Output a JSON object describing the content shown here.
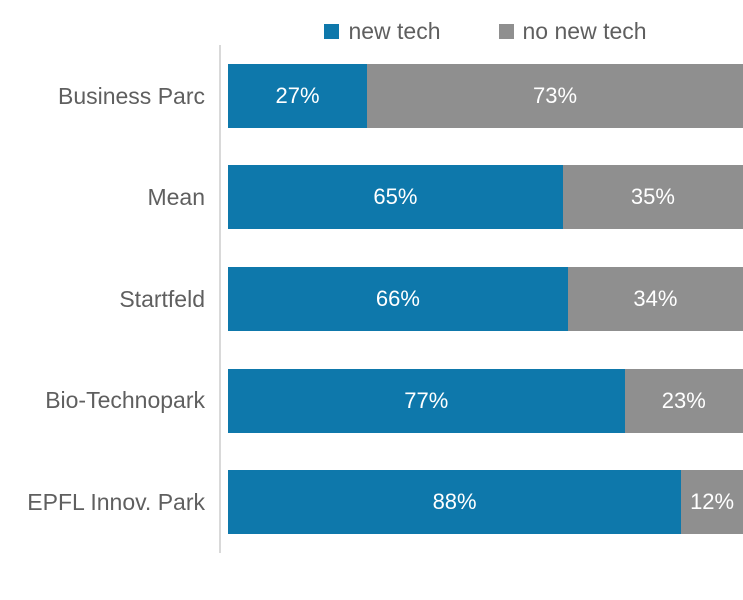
{
  "chart_data": {
    "type": "bar",
    "orientation": "horizontal",
    "stacked": true,
    "title": "",
    "categories": [
      "Business Parc",
      "Mean",
      "Startfeld",
      "Bio-Technopark",
      "EPFL Innov. Park"
    ],
    "series": [
      {
        "name": "new tech",
        "color": "#0e78ab",
        "values": [
          27,
          65,
          66,
          77,
          88
        ]
      },
      {
        "name": "no new tech",
        "color": "#8f8f8f",
        "values": [
          73,
          35,
          34,
          23,
          12
        ]
      }
    ],
    "value_suffix": "%",
    "xlim": [
      0,
      100
    ],
    "legend_position": "top",
    "grid": false,
    "colors": {
      "axis_line": "#d9d9d9",
      "category_label_text": "#5f5f5f",
      "legend_text": "#5f5f5f",
      "value_label_text": "#ffffff",
      "background": "#ffffff"
    }
  }
}
